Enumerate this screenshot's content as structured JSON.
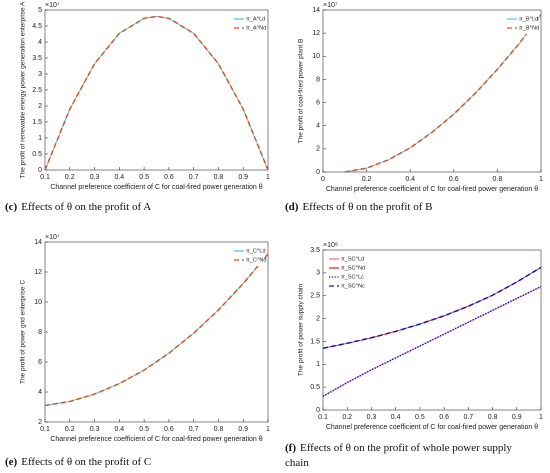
{
  "chart_data": [
    {
      "type": "line",
      "caption_label": "(c)",
      "caption": "Effects of θ on the profit of A",
      "multiplier": "×10⁷",
      "xlabel": "Channel preference coefficient of C for coal-fired power generation θ",
      "ylabel": "The profit of renewable energy power generation enterprise A",
      "x": [
        0.1,
        0.2,
        0.3,
        0.4,
        0.5,
        0.55,
        0.6,
        0.7,
        0.8,
        0.9,
        1
      ],
      "xlim": [
        0.1,
        1
      ],
      "xticks": [
        0.1,
        0.2,
        0.3,
        0.4,
        0.5,
        0.6,
        0.7,
        0.8,
        0.9,
        1
      ],
      "ylim": [
        0,
        5
      ],
      "yticks": [
        0,
        0.5,
        1,
        1.5,
        2,
        2.5,
        3,
        3.5,
        4,
        4.5,
        5
      ],
      "legend": "upper right",
      "series": [
        {
          "name": "π_A^Ld",
          "color": "#4dbeee",
          "dash": "solid",
          "values": [
            0,
            1.9,
            3.32,
            4.27,
            4.74,
            4.8,
            4.74,
            4.27,
            3.32,
            1.9,
            0
          ]
        },
        {
          "name": "π_A^Nd",
          "color": "#d95319",
          "dash": "dashed",
          "values": [
            0,
            1.9,
            3.32,
            4.27,
            4.74,
            4.8,
            4.74,
            4.27,
            3.32,
            1.9,
            0
          ]
        }
      ]
    },
    {
      "type": "line",
      "caption_label": "(d)",
      "caption": "Effects of θ on the profit of B",
      "multiplier": "×10⁷",
      "xlabel": "Channel preference coefficient of C for coal-fired power generation θ",
      "ylabel": "The profit of coal-fired power plant B",
      "x": [
        0.1,
        0.2,
        0.3,
        0.4,
        0.5,
        0.6,
        0.7,
        0.8,
        0.9,
        1
      ],
      "xlim": [
        0,
        1
      ],
      "xticks": [
        0,
        0.2,
        0.4,
        0.6,
        0.8,
        1
      ],
      "ylim": [
        0,
        14
      ],
      "yticks": [
        0,
        2,
        4,
        6,
        8,
        10,
        12,
        14
      ],
      "legend": "upper right",
      "series": [
        {
          "name": "π_B^Ld",
          "color": "#4dbeee",
          "dash": "solid",
          "values": [
            0,
            0.33,
            1.05,
            2.09,
            3.43,
            5.0,
            6.83,
            8.87,
            11.1,
            13.6
          ]
        },
        {
          "name": "π_B^Nd",
          "color": "#d95319",
          "dash": "dashed",
          "values": [
            0,
            0.33,
            1.05,
            2.09,
            3.43,
            5.0,
            6.83,
            8.87,
            11.1,
            13.6
          ]
        }
      ]
    },
    {
      "type": "line",
      "caption_label": "(e)",
      "caption": "Effects of θ on the profit of C",
      "multiplier": "×10⁷",
      "xlabel": "Channel preference coefficient of C for coal-fired power generation θ",
      "ylabel": "The profit of power grid enterprise C",
      "x": [
        0.1,
        0.2,
        0.3,
        0.4,
        0.5,
        0.6,
        0.7,
        0.8,
        0.9,
        1
      ],
      "xlim": [
        0.1,
        1
      ],
      "xticks": [
        0.1,
        0.2,
        0.3,
        0.4,
        0.5,
        0.6,
        0.7,
        0.8,
        0.9,
        1
      ],
      "ylim": [
        2,
        14
      ],
      "yticks": [
        2,
        4,
        6,
        8,
        10,
        12,
        14
      ],
      "legend": "upper right",
      "series": [
        {
          "name": "π_C^Ld",
          "color": "#4dbeee",
          "dash": "solid",
          "values": [
            3.1,
            3.37,
            3.86,
            4.56,
            5.46,
            6.59,
            7.92,
            9.47,
            11.23,
            13.2
          ]
        },
        {
          "name": "π_C^Nd",
          "color": "#d95319",
          "dash": "dashed",
          "values": [
            3.1,
            3.37,
            3.86,
            4.56,
            5.46,
            6.59,
            7.92,
            9.47,
            11.23,
            13.2
          ]
        }
      ]
    },
    {
      "type": "line",
      "caption_label": "(f)",
      "caption": "Effects of θ on the profit of whole power supply chain",
      "multiplier": "×10⁸",
      "xlabel": "Channel preference coefficient of C for coal-fired power generation θ",
      "ylabel": "The profit of power supply chain",
      "x": [
        0.1,
        0.2,
        0.3,
        0.4,
        0.5,
        0.6,
        0.7,
        0.8,
        0.9,
        1
      ],
      "xlim": [
        0.1,
        1
      ],
      "xticks": [
        0.1,
        0.2,
        0.3,
        0.4,
        0.5,
        0.6,
        0.7,
        0.8,
        0.9,
        1
      ],
      "ylim": [
        0,
        3.5
      ],
      "yticks": [
        0,
        0.5,
        1,
        1.5,
        2,
        2.5,
        3,
        3.5
      ],
      "legend": "upper left",
      "series": [
        {
          "name": "π_SC^Ld",
          "color": "#f07090",
          "dash": "solid",
          "values": [
            0.3,
            0.6,
            0.88,
            1.14,
            1.4,
            1.66,
            1.92,
            2.18,
            2.44,
            2.7
          ]
        },
        {
          "name": "π_SC^Nd",
          "color": "#e02020",
          "dash": "solid",
          "values": [
            1.35,
            1.46,
            1.58,
            1.72,
            1.88,
            2.06,
            2.27,
            2.51,
            2.8,
            3.12
          ]
        },
        {
          "name": "π_SC^Lc",
          "color": "#1010d0",
          "dash": "dotted",
          "values": [
            0.3,
            0.6,
            0.88,
            1.14,
            1.4,
            1.66,
            1.92,
            2.18,
            2.44,
            2.7
          ]
        },
        {
          "name": "π_SC^Nc",
          "color": "#1010d0",
          "dash": "dashed",
          "values": [
            1.35,
            1.46,
            1.58,
            1.72,
            1.88,
            2.06,
            2.27,
            2.51,
            2.8,
            3.12
          ]
        }
      ]
    }
  ]
}
